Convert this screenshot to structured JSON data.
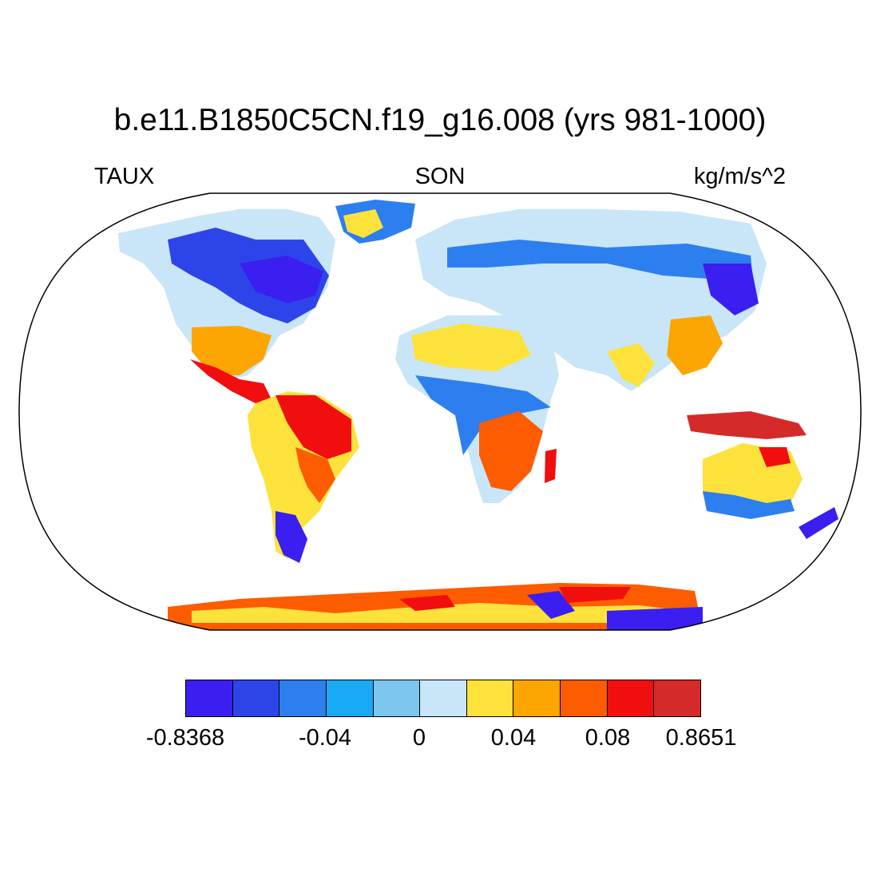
{
  "title": "b.e11.B1850C5CN.f19_g16.008 (yrs 981-1000)",
  "left_label": "TAUX",
  "center_label": "SON",
  "right_label": "kg/m/s^2",
  "colorbar": {
    "colors": [
      "#3b1ef0",
      "#2d45e8",
      "#2d7ff0",
      "#19aaf5",
      "#7dc6ee",
      "#c8e6f7",
      "#fde23c",
      "#fda500",
      "#fd5c00",
      "#f10e0e",
      "#d52a2a"
    ],
    "labels": [
      "-0.8368",
      "-0.04",
      "0",
      "0.04",
      "0.08",
      "0.8651"
    ]
  }
}
